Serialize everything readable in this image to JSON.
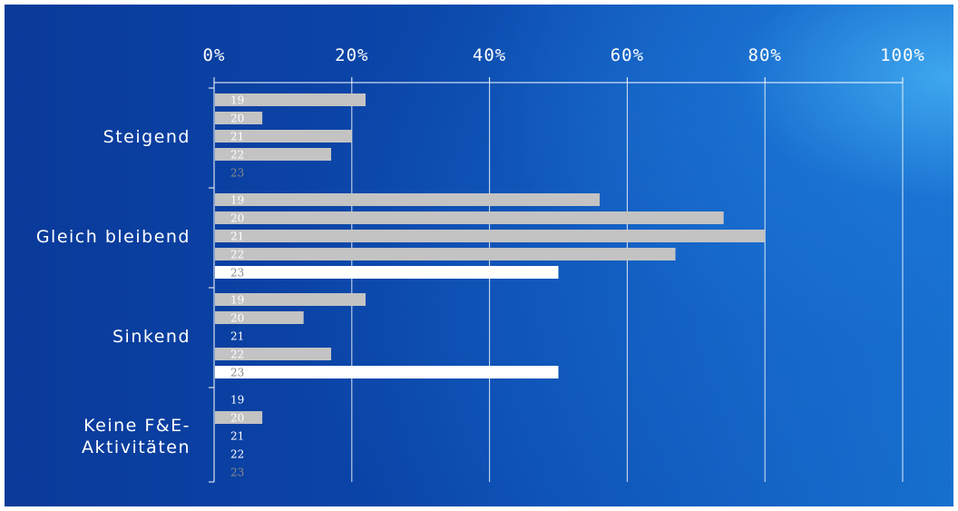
{
  "chart_data": {
    "type": "bar",
    "orientation": "horizontal",
    "xlim": [
      0,
      100
    ],
    "x_ticks": [
      "0%",
      "20%",
      "40%",
      "60%",
      "80%",
      "100%"
    ],
    "grid": true,
    "categories": [
      "Steigend",
      "Gleich bleibend",
      "Sinkend",
      "Keine F&E-Aktivitäten"
    ],
    "category_lines": [
      [
        "Steigend"
      ],
      [
        "Gleich bleibend"
      ],
      [
        "Sinkend"
      ],
      [
        "Keine F&E-",
        "Aktivitäten"
      ]
    ],
    "series": [
      {
        "name": "19",
        "values": [
          22,
          56,
          22,
          0
        ]
      },
      {
        "name": "20",
        "values": [
          7,
          74,
          13,
          7
        ]
      },
      {
        "name": "21",
        "values": [
          20,
          80,
          0,
          0
        ]
      },
      {
        "name": "22",
        "values": [
          17,
          67,
          17,
          0
        ]
      },
      {
        "name": "23",
        "values": [
          0,
          50,
          50,
          0
        ]
      }
    ],
    "colors": {
      "bar_previous_years": "#c3c3c3",
      "bar_current_year": "#ffffff",
      "label_on_grey": "#ffffff",
      "label_on_white": "#8a8a8a",
      "label_empty": "#ffffff",
      "label_empty_current": "#8a8a8a",
      "axis": "#ffffff",
      "grid": "#ffffff"
    }
  }
}
